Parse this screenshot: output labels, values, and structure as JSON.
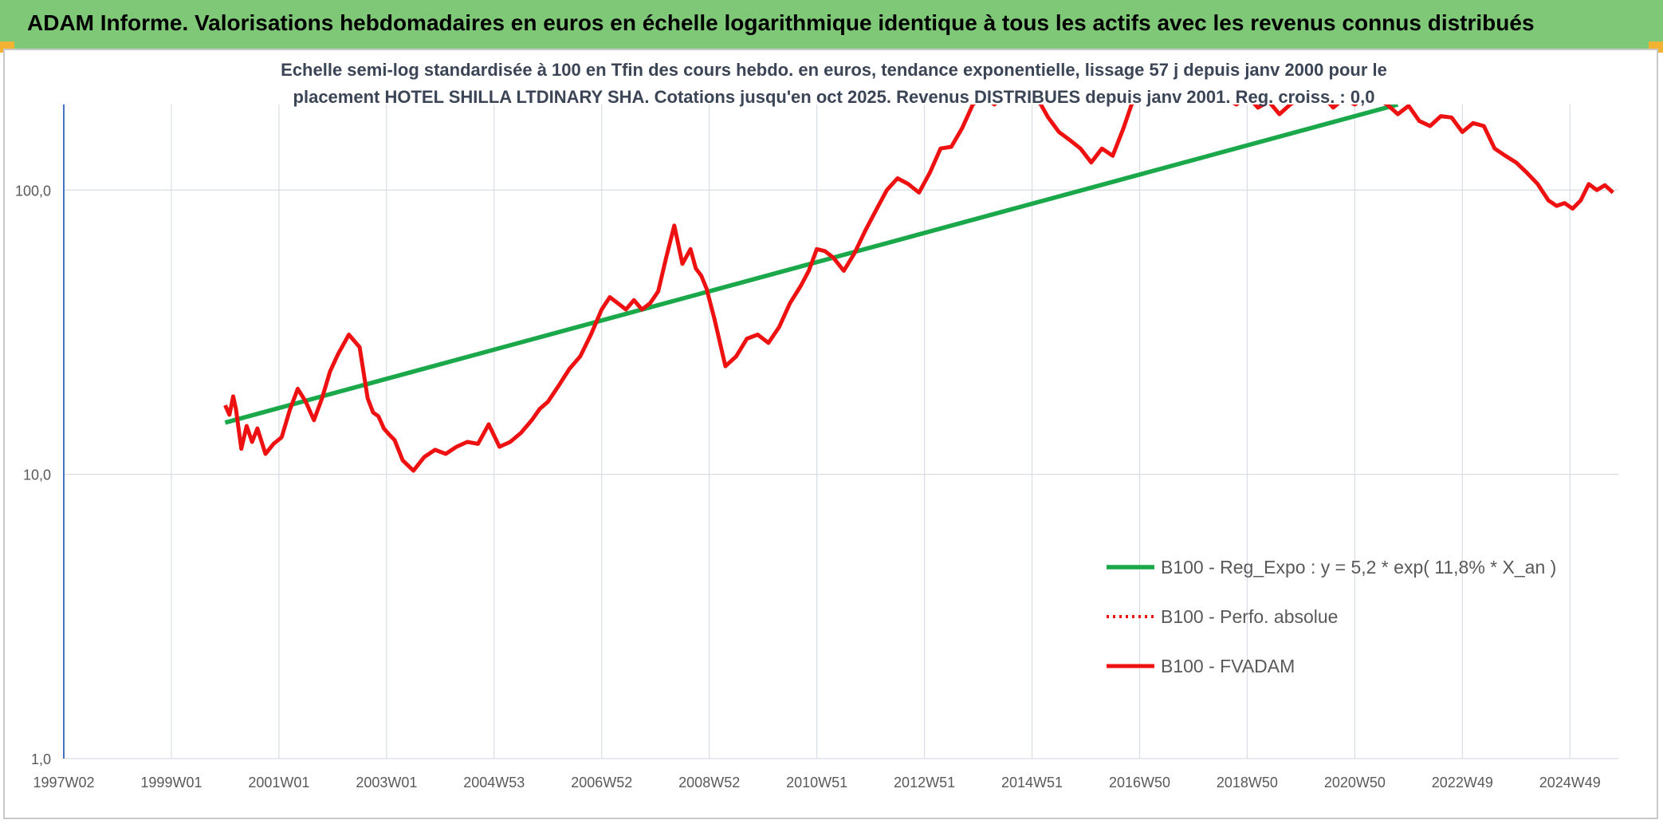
{
  "banner": {
    "title": "ADAM Informe. Valorisations hebdomadaires en euros en échelle logarithmique identique à tous les actifs avec les revenus connus distribués"
  },
  "colors": {
    "banner_bg": "#7ec878",
    "regression": "#1aa84b",
    "fvadam": "#ee1111",
    "perfo": "#ee1111",
    "grid": "#d9dde3",
    "axis": "#4472c4"
  },
  "chart_data": {
    "type": "line",
    "title_lines": [
      "Echelle semi-log standardisée à 100 en Tfin des cours hebdo. en euros, tendance exponentielle, lissage 57 j depuis janv 2000 pour le",
      "placement HOTEL SHILLA LTDINARY SHA. Cotations jusqu'en oct 2025. Revenus DISTRIBUES depuis janv 2001. Reg. croiss. : 0,0"
    ],
    "y_scale": "log",
    "ylim": [
      1,
      200
    ],
    "xlim": [
      1997.0,
      2025.9
    ],
    "y_ticks": [
      {
        "value": 100,
        "label": "100,0"
      },
      {
        "value": 10,
        "label": "10,0"
      },
      {
        "value": 1,
        "label": "1,0"
      }
    ],
    "x_ticks": [
      {
        "value": 1997.0,
        "label": "1997W02"
      },
      {
        "value": 1999.0,
        "label": "1999W01"
      },
      {
        "value": 2001.0,
        "label": "2001W01"
      },
      {
        "value": 2003.0,
        "label": "2003W01"
      },
      {
        "value": 2005.0,
        "label": "2004W53"
      },
      {
        "value": 2007.0,
        "label": "2006W52"
      },
      {
        "value": 2009.0,
        "label": "2008W52"
      },
      {
        "value": 2011.0,
        "label": "2010W51"
      },
      {
        "value": 2013.0,
        "label": "2012W51"
      },
      {
        "value": 2015.0,
        "label": "2014W51"
      },
      {
        "value": 2017.0,
        "label": "2016W50"
      },
      {
        "value": 2019.0,
        "label": "2018W50"
      },
      {
        "value": 2021.0,
        "label": "2020W50"
      },
      {
        "value": 2023.0,
        "label": "2022W49"
      },
      {
        "value": 2025.0,
        "label": "2024W49"
      }
    ],
    "grid": "vertical and horizontal",
    "legend_position": "bottom-right",
    "series": [
      {
        "name": "B100 - Reg_Expo : y = 5,2 * exp( 11,8% *  X_an )",
        "style": "solid-green",
        "x": [
          2000.0,
          2021.8
        ],
        "y": [
          15.2,
          200
        ]
      },
      {
        "name": "B100 - Perfo. absolue",
        "style": "dotted-red",
        "x": [],
        "y": []
      },
      {
        "name": "B100 - FVADAM",
        "style": "solid-red",
        "x": [
          2000.0,
          2000.08,
          2000.15,
          2000.2,
          2000.3,
          2000.4,
          2000.5,
          2000.6,
          2000.75,
          2000.9,
          2001.05,
          2001.2,
          2001.35,
          2001.5,
          2001.65,
          2001.8,
          2001.95,
          2002.1,
          2002.3,
          2002.5,
          2002.65,
          2002.75,
          2002.85,
          2002.95,
          2003.05,
          2003.15,
          2003.3,
          2003.5,
          2003.7,
          2003.9,
          2004.1,
          2004.3,
          2004.5,
          2004.7,
          2004.9,
          2005.1,
          2005.3,
          2005.5,
          2005.7,
          2005.85,
          2006.0,
          2006.2,
          2006.4,
          2006.6,
          2006.8,
          2007.0,
          2007.15,
          2007.3,
          2007.45,
          2007.6,
          2007.75,
          2007.9,
          2008.05,
          2008.2,
          2008.35,
          2008.5,
          2008.65,
          2008.75,
          2008.85,
          2008.95,
          2009.1,
          2009.3,
          2009.5,
          2009.7,
          2009.9,
          2010.1,
          2010.3,
          2010.5,
          2010.7,
          2010.85,
          2011.0,
          2011.15,
          2011.3,
          2011.5,
          2011.7,
          2011.9,
          2012.1,
          2012.3,
          2012.5,
          2012.7,
          2012.9,
          2013.1,
          2013.3,
          2013.5,
          2013.7,
          2013.9,
          2014.1,
          2014.3,
          2014.5,
          2014.7,
          2014.9,
          2015.1,
          2015.3,
          2015.5,
          2015.7,
          2015.9,
          2016.1,
          2016.3,
          2016.5,
          2016.7,
          2016.85,
          2017.0,
          2017.2,
          2017.4,
          2017.6,
          2017.8,
          2018.0,
          2018.2,
          2018.4,
          2018.6,
          2018.8,
          2019.0,
          2019.2,
          2019.4,
          2019.6,
          2019.8,
          2020.0,
          2020.2,
          2020.4,
          2020.6,
          2020.8,
          2021.0,
          2021.2,
          2021.4,
          2021.6,
          2021.8,
          2022.0,
          2022.2,
          2022.4,
          2022.6,
          2022.8,
          2023.0,
          2023.2,
          2023.4,
          2023.6,
          2023.8,
          2024.0,
          2024.2,
          2024.4,
          2024.6,
          2024.75,
          2024.9,
          2025.05,
          2025.2,
          2025.35,
          2025.5,
          2025.65,
          2025.8
        ],
        "y": [
          17.5,
          16.2,
          18.8,
          17.0,
          12.3,
          14.8,
          13.0,
          14.5,
          11.8,
          12.8,
          13.5,
          16.8,
          20.0,
          18.0,
          15.5,
          18.5,
          23.0,
          26.5,
          31.0,
          28.0,
          18.5,
          16.5,
          16.0,
          14.5,
          13.8,
          13.2,
          11.2,
          10.3,
          11.5,
          12.2,
          11.8,
          12.5,
          13.0,
          12.8,
          15.0,
          12.5,
          13.0,
          14.0,
          15.5,
          17.0,
          18.0,
          20.5,
          23.5,
          26.0,
          31.0,
          38.0,
          42.0,
          40.0,
          38.0,
          41.0,
          38.0,
          40.0,
          44.0,
          58.0,
          75.0,
          55.0,
          62.0,
          53.0,
          50.0,
          45.0,
          35.0,
          24.0,
          26.0,
          30.0,
          31.0,
          29.0,
          33.0,
          40.0,
          46.0,
          52.0,
          62.0,
          61.0,
          58.0,
          52.0,
          60.0,
          72.0,
          85.0,
          100.0,
          110.0,
          105.0,
          98.0,
          115.0,
          140.0,
          142.0,
          165.0,
          200.0,
          215.0,
          200.0,
          220.0,
          230.0,
          240.0,
          210.0,
          180.0,
          160.0,
          150.0,
          140.0,
          125.0,
          140.0,
          132.0,
          165.0,
          200.0,
          215.0,
          230.0,
          215.0,
          220.0,
          230.0,
          205.0,
          215.0,
          225.0,
          210.0,
          200.0,
          215.0,
          195.0,
          205.0,
          185.0,
          200.0,
          210.0,
          205.0,
          215.0,
          195.0,
          210.0,
          200.0,
          215.0,
          210.0,
          200.0,
          185.0,
          198.0,
          175.0,
          168.0,
          182.0,
          180.0,
          160.0,
          172.0,
          168.0,
          140.0,
          132.0,
          125.0,
          115.0,
          105.0,
          92.0,
          88.0,
          90.0,
          86.0,
          92.0,
          105.0,
          100.0,
          104.0,
          98.0
        ]
      }
    ]
  }
}
